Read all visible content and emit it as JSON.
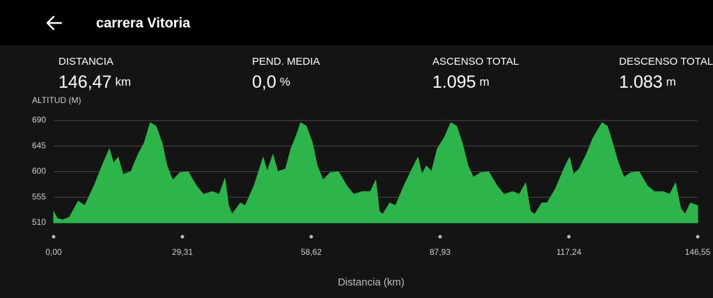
{
  "header": {
    "title": "carrera Vitoria"
  },
  "stats": [
    {
      "label": "DISTANCIA",
      "value": "146,47",
      "unit": "km"
    },
    {
      "label": "PEND. MEDIA",
      "value": "0,0",
      "unit": "%"
    },
    {
      "label": "ASCENSO TOTAL",
      "value": "1.095",
      "unit": "m"
    },
    {
      "label": "DESCENSO TOTAL",
      "value": "1.083",
      "unit": "m"
    }
  ],
  "chart_data": {
    "type": "area",
    "y_label": "ALTITUD (M)",
    "x_label": "Distancia (km)",
    "color": "#2db54b",
    "grid": true,
    "xlim": [
      0,
      146.55
    ],
    "ylim": [
      510,
      690
    ],
    "yticks": [
      510,
      555,
      600,
      645,
      690
    ],
    "xticks": [
      {
        "value": 0,
        "label": "0,00"
      },
      {
        "value": 29.31,
        "label": "29,31"
      },
      {
        "value": 58.62,
        "label": "58,62"
      },
      {
        "value": 87.93,
        "label": "87,93"
      },
      {
        "value": 117.24,
        "label": "117,24"
      },
      {
        "value": 146.55,
        "label": "146,55"
      }
    ],
    "x": [
      0,
      0.8,
      2.1,
      3.6,
      5.6,
      7.1,
      9.2,
      11.3,
      12.7,
      13.6,
      14.7,
      15.8,
      17.6,
      19.2,
      20.6,
      22.0,
      23.3,
      24.7,
      25.8,
      27.1,
      28.7,
      30.6,
      32.5,
      34.1,
      36.1,
      37.7,
      39.0,
      39.8,
      40.6,
      42.5,
      43.6,
      45.6,
      47.7,
      48.6,
      49.9,
      51.0,
      52.8,
      54.0,
      55.3,
      56.2,
      57.5,
      58.9,
      60.0,
      61.3,
      62.9,
      64.8,
      66.7,
      68.3,
      70.2,
      72.1,
      73.3,
      74.1,
      74.9,
      76.5,
      77.8,
      79.7,
      81.9,
      82.9,
      83.8,
      84.8,
      86.0,
      87.3,
      88.9,
      90.4,
      91.7,
      93.0,
      94.3,
      95.5,
      97.1,
      99.0,
      100.9,
      102.5,
      104.4,
      106.0,
      107.4,
      108.5,
      109.5,
      111.1,
      112.3,
      114.2,
      116.4,
      117.4,
      118.3,
      119.6,
      121.2,
      122.8,
      124.8,
      126.0,
      127.2,
      128.5,
      129.8,
      131.3,
      133.2,
      135.1,
      136.7,
      138.6,
      140.2,
      141.5,
      142.7,
      143.7,
      144.9,
      146.55
    ],
    "values": [
      530,
      518,
      515,
      520,
      548,
      540,
      575,
      615,
      640,
      615,
      625,
      595,
      600,
      630,
      650,
      686,
      680,
      650,
      610,
      585,
      598,
      600,
      575,
      560,
      565,
      560,
      588,
      540,
      525,
      545,
      540,
      575,
      625,
      600,
      630,
      600,
      605,
      640,
      665,
      686,
      680,
      650,
      610,
      585,
      598,
      600,
      575,
      560,
      565,
      565,
      585,
      530,
      525,
      545,
      540,
      575,
      610,
      625,
      595,
      610,
      600,
      640,
      660,
      686,
      680,
      650,
      610,
      590,
      598,
      600,
      575,
      560,
      565,
      560,
      580,
      530,
      525,
      545,
      545,
      570,
      610,
      625,
      595,
      605,
      630,
      660,
      686,
      680,
      650,
      615,
      590,
      598,
      600,
      575,
      565,
      565,
      560,
      580,
      535,
      525,
      545,
      540
    ]
  }
}
